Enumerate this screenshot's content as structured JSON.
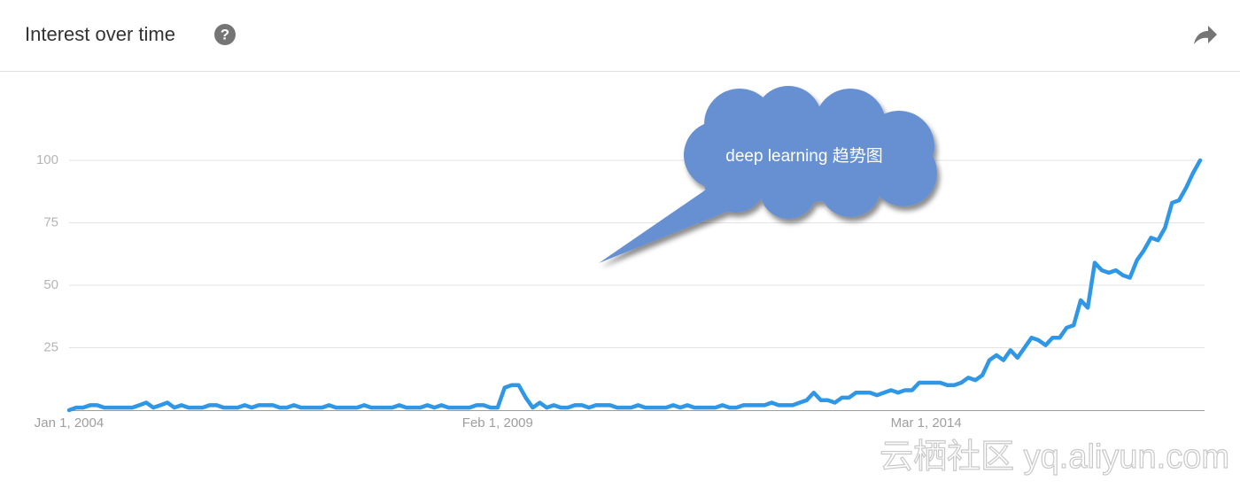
{
  "chart_data": {
    "type": "line",
    "title": "Interest over time",
    "annotation": "deep learning 趋势图",
    "watermark": "云栖社区 yq.aliyun.com",
    "color": "#2f97e6",
    "ylim": [
      0,
      100
    ],
    "yticks": [
      25,
      50,
      75,
      100
    ],
    "grid": true,
    "categories": [
      "Jan 1, 2004",
      null,
      null,
      null,
      null,
      null,
      null,
      null,
      null,
      null,
      null,
      null,
      null,
      null,
      null,
      null,
      null,
      null,
      null,
      null,
      null,
      null,
      null,
      null,
      null,
      null,
      null,
      null,
      null,
      null,
      null,
      null,
      null,
      null,
      null,
      null,
      null,
      null,
      null,
      null,
      null,
      null,
      null,
      null,
      null,
      null,
      null,
      null,
      null,
      null,
      null,
      null,
      null,
      null,
      null,
      null,
      null,
      null,
      null,
      null,
      null,
      "Feb 1, 2009",
      null,
      null,
      null,
      null,
      null,
      null,
      null,
      null,
      null,
      null,
      null,
      null,
      null,
      null,
      null,
      null,
      null,
      null,
      null,
      null,
      null,
      null,
      null,
      null,
      null,
      null,
      null,
      null,
      null,
      null,
      null,
      null,
      null,
      null,
      null,
      null,
      null,
      null,
      null,
      null,
      null,
      null,
      null,
      null,
      null,
      null,
      null,
      null,
      null,
      null,
      null,
      null,
      null,
      null,
      null,
      null,
      null,
      null,
      null,
      null,
      "Mar 1, 2014",
      null,
      null,
      null,
      null,
      null,
      null,
      null,
      null,
      null,
      null,
      null,
      null,
      null,
      null,
      null,
      null,
      null,
      null,
      null,
      null,
      null,
      null,
      null,
      null,
      null,
      null,
      null,
      null,
      null,
      null,
      null,
      null,
      null,
      null,
      null,
      null,
      null,
      null,
      null
    ],
    "values": [
      0,
      1,
      1,
      2,
      2,
      1,
      1,
      1,
      1,
      1,
      2,
      3,
      1,
      2,
      3,
      1,
      2,
      1,
      1,
      1,
      2,
      2,
      1,
      1,
      1,
      2,
      1,
      2,
      2,
      2,
      1,
      1,
      2,
      1,
      1,
      1,
      1,
      2,
      1,
      1,
      1,
      1,
      2,
      1,
      1,
      1,
      1,
      2,
      1,
      1,
      1,
      2,
      1,
      2,
      1,
      1,
      1,
      1,
      2,
      2,
      1,
      1,
      9,
      10,
      10,
      5,
      1,
      3,
      1,
      2,
      1,
      1,
      2,
      2,
      1,
      2,
      2,
      2,
      1,
      1,
      1,
      2,
      1,
      1,
      1,
      1,
      2,
      1,
      2,
      1,
      1,
      1,
      1,
      2,
      1,
      1,
      2,
      2,
      2,
      2,
      3,
      2,
      2,
      2,
      3,
      4,
      7,
      4,
      4,
      3,
      5,
      5,
      7,
      7,
      7,
      6,
      7,
      8,
      7,
      8,
      8,
      11,
      11,
      11,
      11,
      10,
      10,
      11,
      13,
      12,
      14,
      20,
      22,
      20,
      24,
      21,
      25,
      29,
      28,
      26,
      29,
      29,
      33,
      34,
      44,
      41,
      59,
      56,
      55,
      56,
      54,
      53,
      60,
      64,
      69,
      68,
      73,
      83,
      84,
      89,
      95,
      100
    ]
  }
}
